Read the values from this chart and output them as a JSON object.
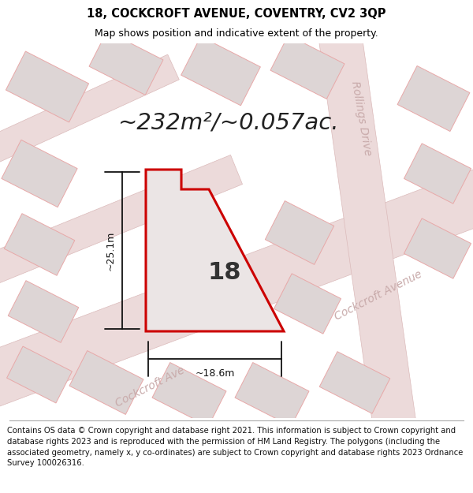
{
  "title": "18, COCKCROFT AVENUE, COVENTRY, CV2 3QP",
  "subtitle": "Map shows position and indicative extent of the property.",
  "area_label": "~232m²/~0.057ac.",
  "number_label": "18",
  "width_label": "~18.6m",
  "height_label": "~25.1m",
  "street_label_cockcroft_1": "Cockcroft Ave",
  "street_label_cockcroft_2": "Cockcroft Avenue",
  "street_label_rollings": "Rollings Drive",
  "footer_text": "Contains OS data © Crown copyright and database right 2021. This information is subject to Crown copyright and database rights 2023 and is reproduced with the permission of HM Land Registry. The polygons (including the associated geometry, namely x, y co-ordinates) are subject to Crown copyright and database rights 2023 Ordnance Survey 100026316.",
  "map_bg": "#f2eded",
  "plot_fill": "#ebe5e5",
  "plot_edge": "#cc0000",
  "road_fill": "#e8dede",
  "building_fill": "#ddd8d8",
  "building_edge": "#e8a8a8",
  "street_color": "#c8aaaa",
  "title_color": "#000000",
  "footer_color": "#111111",
  "dim_line_color": "#111111"
}
